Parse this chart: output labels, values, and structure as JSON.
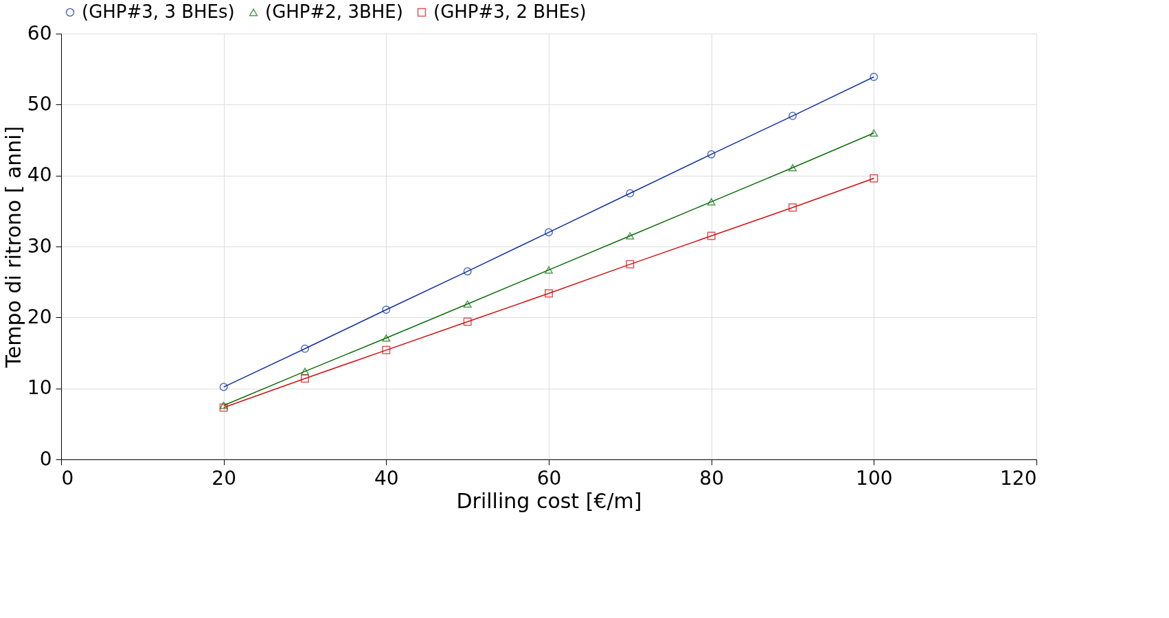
{
  "chart_data": {
    "type": "line",
    "xlabel": "Drilling cost [€/m]",
    "ylabel": "Tempo di ritrono [ anni]",
    "x": [
      20,
      30,
      40,
      50,
      60,
      70,
      80,
      90,
      100
    ],
    "series": [
      {
        "name": "(GHP#3, 3 BHEs)",
        "color": "#0b2f9f",
        "marker": "circle",
        "values": [
          10.2,
          15.6,
          21.1,
          26.5,
          32.0,
          37.5,
          43.0,
          48.4,
          53.9
        ]
      },
      {
        "name": "(GHP#2, 3BHE)",
        "color": "#0a6e0a",
        "marker": "triangle",
        "values": [
          7.6,
          12.4,
          17.1,
          21.9,
          26.7,
          31.5,
          36.3,
          41.1,
          46.0
        ]
      },
      {
        "name": "(GHP#3, 2 BHEs)",
        "color": "#d01010",
        "marker": "square",
        "values": [
          7.3,
          11.4,
          15.4,
          19.4,
          23.4,
          27.5,
          31.5,
          35.5,
          39.6
        ]
      }
    ],
    "xlim": [
      0,
      120
    ],
    "xticks": [
      0,
      20,
      40,
      60,
      80,
      100,
      120
    ],
    "ylim": [
      0,
      60
    ],
    "yticks": [
      0,
      10,
      20,
      30,
      40,
      50,
      60
    ],
    "grid": true,
    "legend": "top",
    "line_style": "solid"
  }
}
